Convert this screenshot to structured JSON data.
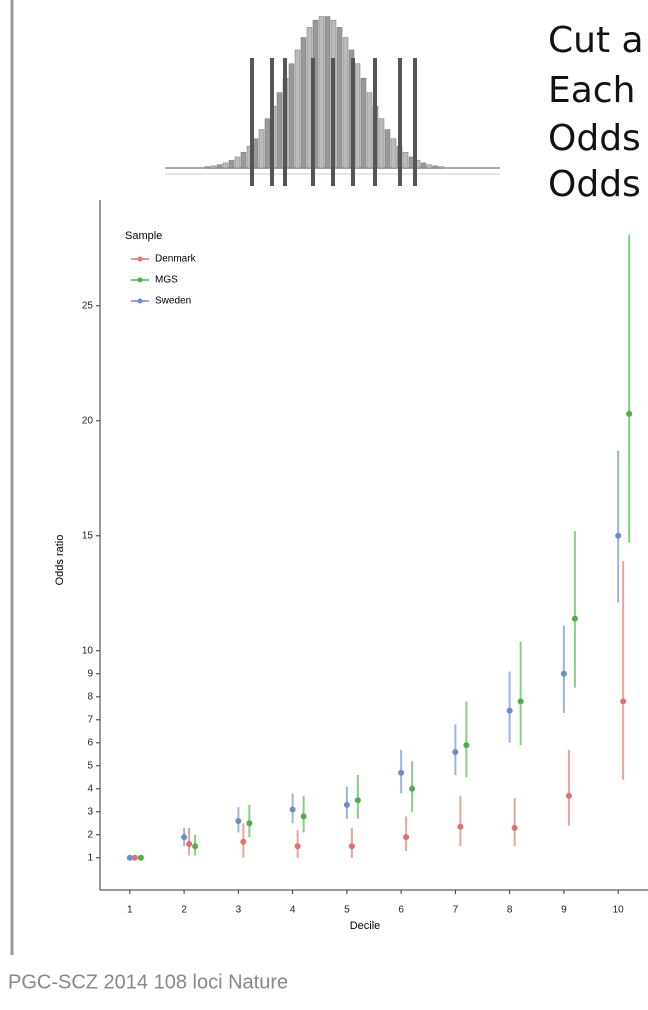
{
  "slide": {
    "heading_lines": [
      "Cut a",
      "Each",
      "Odds",
      "Odds"
    ],
    "footer": "PGC-SCZ 2014 108 loci Nature"
  },
  "chart_data": {
    "type": "pointrange",
    "x_label": "Decile",
    "y_label": "Odds ratio",
    "legend_title": "Sample",
    "x": [
      1,
      2,
      3,
      4,
      5,
      6,
      7,
      8,
      9,
      10
    ],
    "xlim": [
      0.45,
      10.55
    ],
    "xticks": [
      1,
      2,
      3,
      4,
      5,
      6,
      7,
      8,
      9,
      10
    ],
    "ylim": [
      -0.4,
      29.6
    ],
    "yticks": [
      1,
      2,
      3,
      4,
      5,
      6,
      7,
      8,
      9,
      10,
      15,
      20,
      25
    ],
    "series": [
      {
        "name": "Denmark",
        "color": "#e0716b",
        "values": [
          1.0,
          1.6,
          1.7,
          1.5,
          1.5,
          1.9,
          2.35,
          2.3,
          3.7,
          7.8
        ],
        "lower": [
          1.0,
          1.1,
          1.0,
          1.0,
          1.0,
          1.3,
          1.5,
          1.5,
          2.4,
          4.4
        ],
        "upper": [
          1.0,
          2.3,
          2.5,
          2.2,
          2.3,
          2.8,
          3.7,
          3.6,
          5.7,
          13.9
        ]
      },
      {
        "name": "MGS",
        "color": "#4daf4a",
        "values": [
          1.0,
          1.5,
          2.5,
          2.8,
          3.5,
          4.0,
          5.9,
          7.8,
          11.4,
          20.3
        ],
        "lower": [
          1.0,
          1.1,
          1.9,
          2.1,
          2.7,
          3.0,
          4.5,
          5.9,
          8.4,
          14.7
        ],
        "upper": [
          1.0,
          2.0,
          3.3,
          3.7,
          4.6,
          5.2,
          7.8,
          10.4,
          15.2,
          28.1
        ]
      },
      {
        "name": "Sweden",
        "color": "#6a8ec8",
        "values": [
          1.0,
          1.9,
          2.6,
          3.1,
          3.3,
          4.7,
          5.6,
          7.4,
          9.0,
          15.0
        ],
        "lower": [
          1.0,
          1.5,
          2.1,
          2.5,
          2.7,
          3.8,
          4.6,
          6.0,
          7.3,
          12.1
        ],
        "upper": [
          1.0,
          2.3,
          3.2,
          3.8,
          4.1,
          5.7,
          6.8,
          9.1,
          11.1,
          18.7
        ]
      }
    ]
  }
}
